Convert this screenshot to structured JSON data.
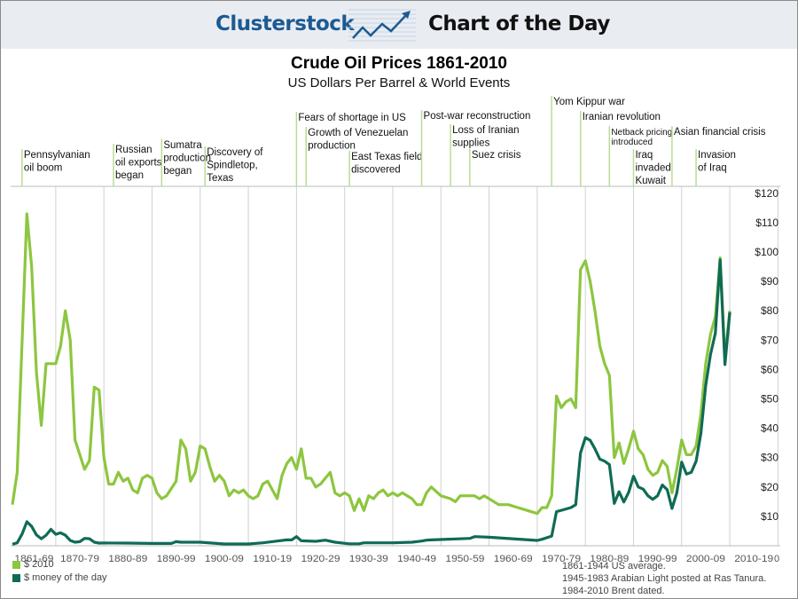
{
  "header": {
    "brand": "Clusterstock",
    "section": "Chart of the Day",
    "logo_icon": "rising-line-chart-arrow-icon"
  },
  "colors": {
    "real": "#8dc63f",
    "nominal": "#0f6b55",
    "event_line": "#b9dc95",
    "header_bg": "#e9edf2",
    "brand": "#1d5a91"
  },
  "chart_data": {
    "type": "line",
    "title": "Crude Oil Prices 1861-2010",
    "subtitle": "US Dollars Per Barrel & World Events",
    "xlim": [
      1861,
      2010
    ],
    "ylim": [
      0,
      120
    ],
    "y_axis_position": "right",
    "x_tick_labels": [
      "1861-69",
      "1870-79",
      "1880-89",
      "1890-99",
      "1900-09",
      "1910-19",
      "1920-29",
      "1930-39",
      "1940-49",
      "1950-59",
      "1960-69",
      "1970-79",
      "1980-89",
      "1990-99",
      "2000-09",
      "2010-19"
    ],
    "x_end_label": "0",
    "y_tick_labels": [
      "$10",
      "$20",
      "$30",
      "$40",
      "$50",
      "$60",
      "$70",
      "$80",
      "$90",
      "$100",
      "$110",
      "$120"
    ],
    "y_tick_values": [
      10,
      20,
      30,
      40,
      50,
      60,
      70,
      80,
      90,
      100,
      110,
      120
    ],
    "grid": "vertical decade lines",
    "legend_position": "bottom-left",
    "series": [
      {
        "name": "$ 2010",
        "color": "#8dc63f",
        "points": [
          [
            1861,
            14
          ],
          [
            1862,
            25
          ],
          [
            1864,
            113
          ],
          [
            1865,
            95
          ],
          [
            1866,
            59
          ],
          [
            1867,
            41
          ],
          [
            1868,
            62
          ],
          [
            1870,
            62
          ],
          [
            1871,
            68
          ],
          [
            1872,
            80
          ],
          [
            1873,
            70
          ],
          [
            1874,
            36
          ],
          [
            1876,
            26
          ],
          [
            1877,
            29
          ],
          [
            1878,
            54
          ],
          [
            1879,
            53
          ],
          [
            1880,
            30
          ],
          [
            1881,
            21
          ],
          [
            1882,
            21
          ],
          [
            1883,
            25
          ],
          [
            1884,
            22
          ],
          [
            1885,
            23
          ],
          [
            1886,
            19
          ],
          [
            1887,
            18
          ],
          [
            1888,
            23
          ],
          [
            1889,
            24
          ],
          [
            1890,
            23
          ],
          [
            1891,
            18
          ],
          [
            1892,
            16
          ],
          [
            1893,
            17
          ],
          [
            1895,
            22
          ],
          [
            1896,
            36
          ],
          [
            1897,
            33
          ],
          [
            1898,
            22
          ],
          [
            1899,
            25
          ],
          [
            1900,
            34
          ],
          [
            1901,
            33
          ],
          [
            1902,
            27
          ],
          [
            1903,
            22
          ],
          [
            1904,
            24
          ],
          [
            1905,
            22
          ],
          [
            1906,
            17
          ],
          [
            1907,
            19
          ],
          [
            1908,
            18
          ],
          [
            1909,
            19
          ],
          [
            1910,
            17
          ],
          [
            1911,
            16
          ],
          [
            1912,
            17
          ],
          [
            1913,
            21
          ],
          [
            1914,
            22
          ],
          [
            1915,
            19
          ],
          [
            1916,
            16
          ],
          [
            1917,
            24
          ],
          [
            1918,
            28
          ],
          [
            1919,
            30
          ],
          [
            1920,
            26
          ],
          [
            1921,
            33
          ],
          [
            1922,
            23
          ],
          [
            1923,
            23
          ],
          [
            1924,
            20
          ],
          [
            1925,
            21
          ],
          [
            1926,
            23
          ],
          [
            1927,
            25
          ],
          [
            1928,
            18
          ],
          [
            1929,
            17
          ],
          [
            1930,
            18
          ],
          [
            1931,
            17
          ],
          [
            1932,
            12
          ],
          [
            1933,
            16
          ],
          [
            1934,
            12
          ],
          [
            1935,
            17
          ],
          [
            1936,
            16
          ],
          [
            1937,
            18
          ],
          [
            1938,
            19
          ],
          [
            1939,
            17
          ],
          [
            1940,
            18
          ],
          [
            1941,
            17
          ],
          [
            1942,
            18
          ],
          [
            1944,
            16
          ],
          [
            1945,
            14
          ],
          [
            1946,
            14
          ],
          [
            1947,
            18
          ],
          [
            1948,
            20
          ],
          [
            1950,
            17
          ],
          [
            1952,
            16
          ],
          [
            1953,
            15
          ],
          [
            1954,
            17
          ],
          [
            1955,
            17
          ],
          [
            1957,
            17
          ],
          [
            1958,
            16
          ],
          [
            1959,
            17
          ],
          [
            1960,
            16
          ],
          [
            1962,
            14
          ],
          [
            1964,
            14
          ],
          [
            1966,
            13
          ],
          [
            1968,
            12
          ],
          [
            1970,
            11
          ],
          [
            1971,
            13
          ],
          [
            1972,
            13
          ],
          [
            1973,
            17
          ],
          [
            1974,
            51
          ],
          [
            1975,
            47
          ],
          [
            1976,
            49
          ],
          [
            1977,
            50
          ],
          [
            1978,
            47
          ],
          [
            1979,
            94
          ],
          [
            1980,
            97
          ],
          [
            1981,
            90
          ],
          [
            1982,
            80
          ],
          [
            1983,
            68
          ],
          [
            1984,
            62
          ],
          [
            1985,
            58
          ],
          [
            1986,
            30
          ],
          [
            1987,
            35
          ],
          [
            1988,
            28
          ],
          [
            1989,
            33
          ],
          [
            1990,
            39
          ],
          [
            1991,
            33
          ],
          [
            1992,
            31
          ],
          [
            1993,
            26
          ],
          [
            1994,
            24
          ],
          [
            1995,
            25
          ],
          [
            1996,
            29
          ],
          [
            1997,
            27
          ],
          [
            1998,
            18
          ],
          [
            1999,
            26
          ],
          [
            2000,
            36
          ],
          [
            2001,
            31
          ],
          [
            2002,
            31
          ],
          [
            2003,
            34
          ],
          [
            2004,
            45
          ],
          [
            2005,
            62
          ],
          [
            2006,
            72
          ],
          [
            2007,
            78
          ],
          [
            2008,
            98
          ],
          [
            2009,
            64
          ],
          [
            2010,
            80
          ]
        ]
      },
      {
        "name": "$ money of the day",
        "color": "#0f6b55",
        "points": [
          [
            1861,
            0.5
          ],
          [
            1862,
            1
          ],
          [
            1863,
            4
          ],
          [
            1864,
            8.2
          ],
          [
            1865,
            6.6
          ],
          [
            1866,
            3.7
          ],
          [
            1867,
            2.4
          ],
          [
            1868,
            3.6
          ],
          [
            1869,
            5.6
          ],
          [
            1870,
            3.9
          ],
          [
            1871,
            4.4
          ],
          [
            1872,
            3.6
          ],
          [
            1873,
            1.8
          ],
          [
            1874,
            1.2
          ],
          [
            1875,
            1.4
          ],
          [
            1876,
            2.5
          ],
          [
            1877,
            2.4
          ],
          [
            1878,
            1.2
          ],
          [
            1879,
            0.9
          ],
          [
            1880,
            0.95
          ],
          [
            1885,
            0.9
          ],
          [
            1890,
            0.8
          ],
          [
            1894,
            0.8
          ],
          [
            1895,
            1.4
          ],
          [
            1896,
            1.2
          ],
          [
            1900,
            1.2
          ],
          [
            1905,
            0.6
          ],
          [
            1910,
            0.6
          ],
          [
            1913,
            1
          ],
          [
            1916,
            1.6
          ],
          [
            1918,
            2
          ],
          [
            1919,
            2
          ],
          [
            1920,
            3.1
          ],
          [
            1921,
            1.7
          ],
          [
            1924,
            1.5
          ],
          [
            1926,
            1.9
          ],
          [
            1928,
            1.2
          ],
          [
            1931,
            0.65
          ],
          [
            1933,
            0.67
          ],
          [
            1934,
            1
          ],
          [
            1940,
            1.0
          ],
          [
            1944,
            1.2
          ],
          [
            1946,
            1.6
          ],
          [
            1947,
            1.9
          ],
          [
            1948,
            2.0
          ],
          [
            1956,
            2.5
          ],
          [
            1957,
            3.1
          ],
          [
            1960,
            2.9
          ],
          [
            1970,
            1.8
          ],
          [
            1971,
            2.2
          ],
          [
            1973,
            3.3
          ],
          [
            1974,
            11.6
          ],
          [
            1977,
            13
          ],
          [
            1978,
            14
          ],
          [
            1979,
            31.6
          ],
          [
            1980,
            36.8
          ],
          [
            1981,
            35.9
          ],
          [
            1982,
            33
          ],
          [
            1983,
            29.5
          ],
          [
            1984,
            28.8
          ],
          [
            1985,
            27.6
          ],
          [
            1986,
            14.4
          ],
          [
            1987,
            18.4
          ],
          [
            1988,
            14.9
          ],
          [
            1989,
            18.2
          ],
          [
            1990,
            23.7
          ],
          [
            1991,
            20
          ],
          [
            1992,
            19.3
          ],
          [
            1993,
            17
          ],
          [
            1994,
            15.8
          ],
          [
            1995,
            17
          ],
          [
            1996,
            20.7
          ],
          [
            1997,
            19.1
          ],
          [
            1998,
            12.7
          ],
          [
            1999,
            18
          ],
          [
            2000,
            28.5
          ],
          [
            2001,
            24.4
          ],
          [
            2002,
            25
          ],
          [
            2003,
            28.8
          ],
          [
            2004,
            38.3
          ],
          [
            2005,
            54.5
          ],
          [
            2006,
            65.1
          ],
          [
            2007,
            72.4
          ],
          [
            2008,
            97.3
          ],
          [
            2009,
            61.7
          ],
          [
            2010,
            79.5
          ]
        ]
      }
    ],
    "annotations": [
      {
        "year": 1863,
        "lines": [
          "Pennsylvanian",
          "oil boom"
        ]
      },
      {
        "year": 1882,
        "lines": [
          "Russian",
          "oil exports",
          "began"
        ]
      },
      {
        "year": 1892,
        "lines": [
          "Sumatra",
          "production",
          "began"
        ]
      },
      {
        "year": 1901,
        "lines": [
          "Discovery of",
          "Spindletop,",
          "Texas"
        ]
      },
      {
        "year": 1920,
        "lines": [
          "Fears of shortage in US"
        ]
      },
      {
        "year": 1922,
        "lines": [
          "Growth of Venezuelan",
          "production"
        ]
      },
      {
        "year": 1931,
        "lines": [
          "East Texas field",
          "discovered"
        ]
      },
      {
        "year": 1946,
        "lines": [
          "Post-war reconstruction"
        ]
      },
      {
        "year": 1952,
        "lines": [
          "Loss of Iranian",
          "supplies"
        ]
      },
      {
        "year": 1956,
        "lines": [
          "Suez crisis"
        ]
      },
      {
        "year": 1973,
        "lines": [
          "Yom Kippur war"
        ]
      },
      {
        "year": 1979,
        "lines": [
          "Iranian revolution"
        ]
      },
      {
        "year": 1985,
        "lines": [
          "Netback pricing",
          "introduced"
        ]
      },
      {
        "year": 1990,
        "lines": [
          "Iraq",
          "invaded",
          "Kuwait"
        ]
      },
      {
        "year": 1998,
        "lines": [
          "Asian financial crisis"
        ]
      },
      {
        "year": 2003,
        "lines": [
          "Invasion",
          "of Iraq"
        ]
      }
    ]
  },
  "legend": [
    {
      "label": "$ 2010"
    },
    {
      "label": "$ money of the day"
    }
  ],
  "notes": [
    "1861-1944 US average.",
    "1945-1983 Arabian Light posted at Ras Tanura.",
    "1984-2010 Brent dated."
  ]
}
